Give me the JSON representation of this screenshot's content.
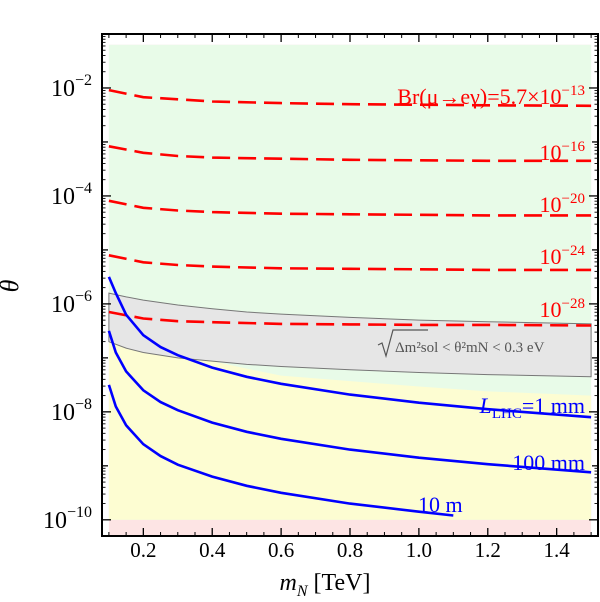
{
  "chart_data": {
    "type": "line",
    "title": "",
    "xlabel": "m_N [TeV]",
    "xlabel_main": "m",
    "xlabel_sub": "N",
    "xlabel_unit": " [TeV]",
    "ylabel": "θ",
    "xlim": [
      0.08,
      1.52
    ],
    "ylim_log10": [
      -10.3,
      -1
    ],
    "yscale": "log",
    "x_ticks": [
      0.2,
      0.4,
      0.6,
      0.8,
      1.0,
      1.2,
      1.4
    ],
    "x_tick_labels": [
      "0.2",
      "0.4",
      "0.6",
      "0.8",
      "1.0",
      "1.2",
      "1.4"
    ],
    "y_ticks_log10": [
      -10,
      -8,
      -6,
      -4,
      -2
    ],
    "y_tick_labels": [
      {
        "base": "10",
        "exp": "−10"
      },
      {
        "base": "10",
        "exp": "−8"
      },
      {
        "base": "10",
        "exp": "−6"
      },
      {
        "base": "10",
        "exp": "−4"
      },
      {
        "base": "10",
        "exp": "−2"
      }
    ],
    "regions": [
      {
        "name": "excluded",
        "color": "#fde4e4",
        "description_x": [
          0.1,
          1.5
        ],
        "y_log10": [
          -10.3,
          -1.2
        ]
      },
      {
        "name": "allowed-green",
        "color": "#e8fbe8",
        "x": [
          0.1,
          1.5
        ],
        "y_log10": [
          -10.0,
          -1.2
        ]
      },
      {
        "name": "yellow-region",
        "color": "#fdfdd2",
        "x": [
          0.1,
          1.5
        ],
        "upper_log10": [
          -6.7,
          -6.82,
          -6.9,
          -7.0,
          -7.06,
          -7.2,
          -7.33,
          -7.43,
          -7.53,
          -7.62,
          -7.7
        ],
        "lower_log10": [
          -10.0,
          -10.0,
          -10.0,
          -10.0,
          -10.0,
          -10.0,
          -10.0,
          -10.0,
          -10.0,
          -10.0,
          -10.0
        ]
      },
      {
        "name": "neutrino-mass-band",
        "color": "#e6e6e6",
        "x": [
          0.1,
          0.15,
          0.2,
          0.3,
          0.4,
          0.5,
          0.6,
          0.8,
          1.0,
          1.2,
          1.5
        ],
        "upper_log10": [
          -5.8,
          -5.87,
          -5.93,
          -6.02,
          -6.09,
          -6.15,
          -6.19,
          -6.25,
          -6.3,
          -6.33,
          -6.37
        ],
        "lower_log10": [
          -6.7,
          -6.82,
          -6.9,
          -7.0,
          -7.06,
          -7.12,
          -7.16,
          -7.22,
          -7.27,
          -7.31,
          -7.35
        ]
      }
    ],
    "series": [
      {
        "name": "Br(μ→eγ)=5.7×10^-13",
        "style": "dashed",
        "color": "#ff0000",
        "x": [
          0.1,
          0.2,
          0.3,
          0.4,
          0.6,
          0.8,
          1.0,
          1.2,
          1.5
        ],
        "y_log10": [
          -2.04,
          -2.17,
          -2.21,
          -2.25,
          -2.28,
          -2.3,
          -2.31,
          -2.32,
          -2.33
        ]
      },
      {
        "name": "10^-16",
        "style": "dashed",
        "color": "#ff0000",
        "x": [
          0.1,
          0.2,
          0.3,
          0.4,
          0.6,
          0.8,
          1.0,
          1.2,
          1.5
        ],
        "y_log10": [
          -3.08,
          -3.2,
          -3.26,
          -3.29,
          -3.31,
          -3.33,
          -3.34,
          -3.35,
          -3.35
        ]
      },
      {
        "name": "10^-20",
        "style": "dashed",
        "color": "#ff0000",
        "x": [
          0.1,
          0.2,
          0.3,
          0.4,
          0.6,
          0.8,
          1.0,
          1.2,
          1.5
        ],
        "y_log10": [
          -4.09,
          -4.22,
          -4.27,
          -4.3,
          -4.33,
          -4.34,
          -4.35,
          -4.36,
          -4.36
        ]
      },
      {
        "name": "10^-24",
        "style": "dashed",
        "color": "#ff0000",
        "x": [
          0.1,
          0.2,
          0.3,
          0.4,
          0.6,
          0.8,
          1.0,
          1.2,
          1.5
        ],
        "y_log10": [
          -5.1,
          -5.23,
          -5.28,
          -5.31,
          -5.34,
          -5.35,
          -5.36,
          -5.37,
          -5.37
        ]
      },
      {
        "name": "10^-28",
        "style": "dashed",
        "color": "#ff0000",
        "x": [
          0.1,
          0.2,
          0.3,
          0.4,
          0.6,
          0.8,
          1.0,
          1.2,
          1.5
        ],
        "y_log10": [
          -6.15,
          -6.27,
          -6.32,
          -6.34,
          -6.37,
          -6.38,
          -6.39,
          -6.39,
          -6.4
        ]
      },
      {
        "name": "L_LHC=1 mm",
        "style": "solid",
        "color": "#0000ff",
        "x": [
          0.1,
          0.12,
          0.15,
          0.2,
          0.25,
          0.3,
          0.4,
          0.5,
          0.6,
          0.8,
          1.0,
          1.2,
          1.5
        ],
        "y_log10": [
          -5.5,
          -5.8,
          -6.2,
          -6.58,
          -6.8,
          -6.95,
          -7.18,
          -7.35,
          -7.48,
          -7.68,
          -7.83,
          -7.95,
          -8.1
        ]
      },
      {
        "name": "100 mm",
        "style": "solid",
        "color": "#0000ff",
        "x": [
          0.1,
          0.12,
          0.15,
          0.2,
          0.25,
          0.3,
          0.4,
          0.5,
          0.6,
          0.8,
          1.0,
          1.2,
          1.5
        ],
        "y_log10": [
          -6.5,
          -6.9,
          -7.25,
          -7.6,
          -7.82,
          -7.97,
          -8.2,
          -8.37,
          -8.5,
          -8.7,
          -8.85,
          -8.97,
          -9.12
        ]
      },
      {
        "name": "10 m",
        "style": "solid",
        "color": "#0000ff",
        "x": [
          0.1,
          0.12,
          0.15,
          0.2,
          0.25,
          0.3,
          0.4,
          0.5,
          0.6,
          0.8,
          1.0,
          1.1
        ],
        "y_log10": [
          -7.5,
          -7.9,
          -8.25,
          -8.6,
          -8.82,
          -8.98,
          -9.2,
          -9.37,
          -9.5,
          -9.7,
          -9.85,
          -9.92
        ]
      }
    ],
    "annotations": [
      {
        "key": "br_main",
        "text": "Br(μ→eγ)=5.7×10",
        "sup": "−13",
        "color": "#ff0000"
      },
      {
        "key": "br_16",
        "text": "10",
        "sup": "−16",
        "color": "#ff0000"
      },
      {
        "key": "br_20",
        "text": "10",
        "sup": "−20",
        "color": "#ff0000"
      },
      {
        "key": "br_24",
        "text": "10",
        "sup": "−24",
        "color": "#ff0000"
      },
      {
        "key": "br_28",
        "text": "10",
        "sup": "−28",
        "color": "#ff0000"
      },
      {
        "key": "l_1mm",
        "text": "L",
        "sub": "LHC",
        "tail": "=1 mm",
        "color": "#0000ff"
      },
      {
        "key": "l_100mm",
        "text": "100 mm",
        "color": "#0000ff"
      },
      {
        "key": "l_10m",
        "text": "10 m",
        "color": "#0000ff"
      },
      {
        "key": "band",
        "text": "Δm²sol < θ²mN < 0.3 eV",
        "color": "#555555"
      }
    ]
  }
}
